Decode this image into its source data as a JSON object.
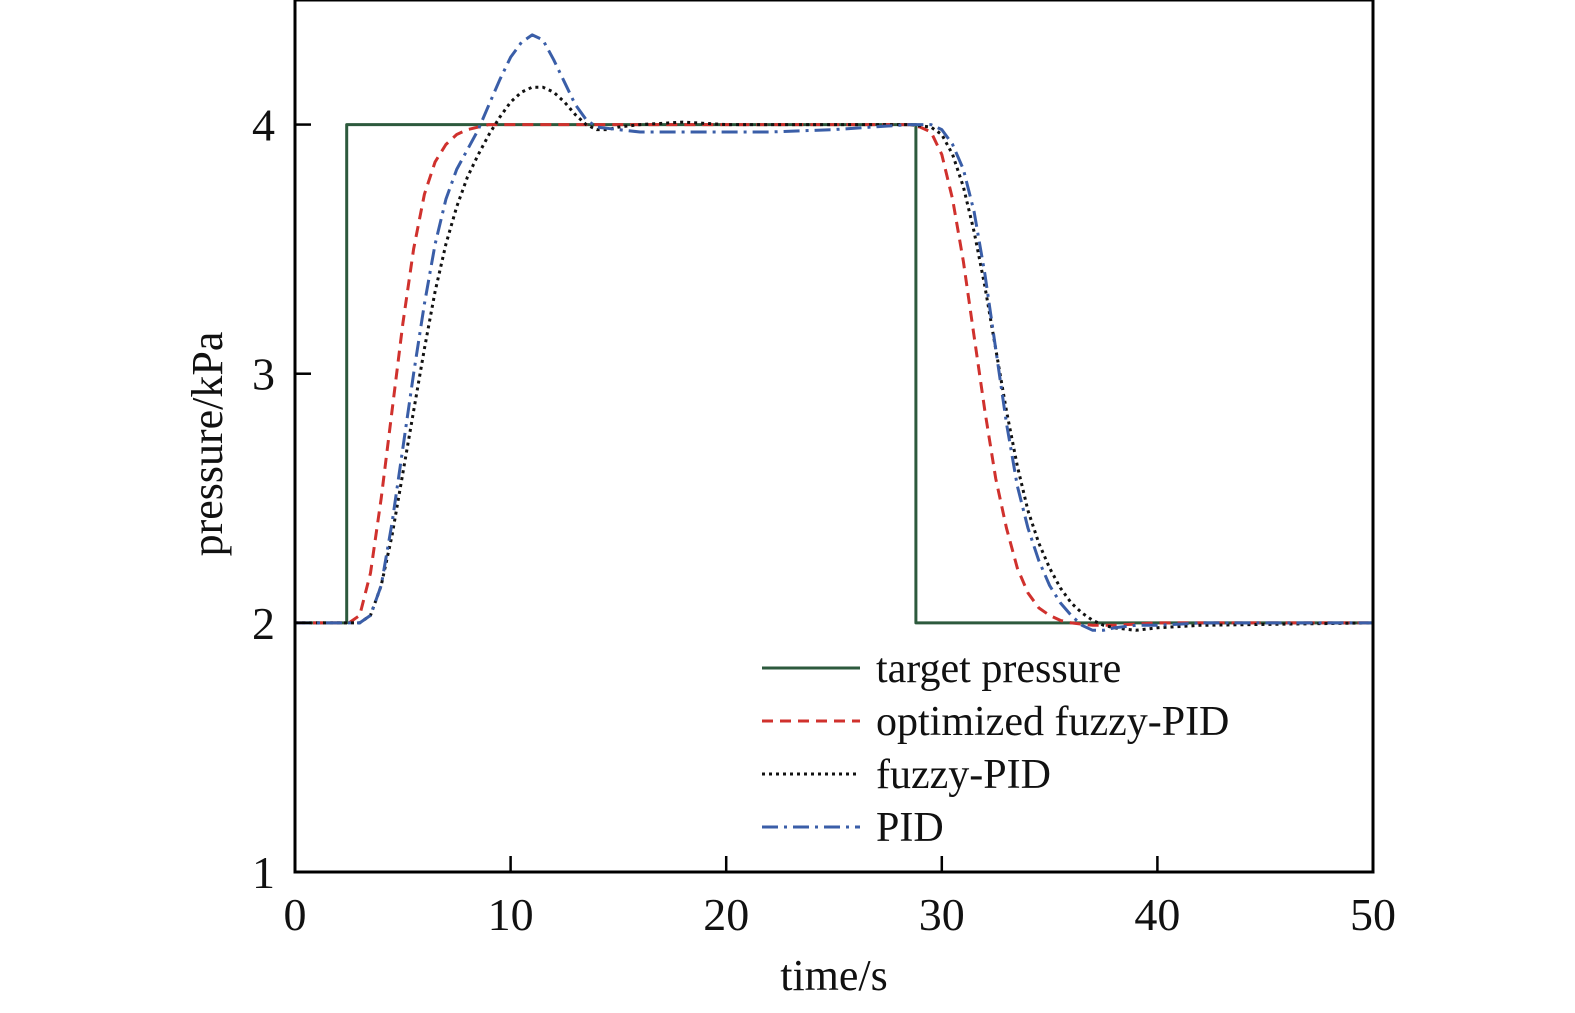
{
  "chart_data": {
    "type": "line",
    "title": "",
    "xlabel": "time/s",
    "ylabel": "pressure/kPa",
    "xlim": [
      0,
      50
    ],
    "ylim": [
      1,
      4.5
    ],
    "xticks": [
      0,
      10,
      20,
      30,
      40,
      50
    ],
    "yticks": [
      1,
      2,
      3,
      4
    ],
    "grid": false,
    "legend_position": "bottom-right",
    "series": [
      {
        "name": "target pressure",
        "color": "#2d5a3d",
        "dash": "solid",
        "x": [
          0,
          2.4,
          2.4,
          28.8,
          28.8,
          50
        ],
        "y": [
          2,
          2,
          4,
          4,
          2,
          2
        ]
      },
      {
        "name": "optimized fuzzy-PID",
        "color": "#d0312d",
        "dash": "dashed",
        "x": [
          0,
          2.5,
          3.0,
          3.5,
          4.0,
          4.5,
          5.0,
          5.5,
          6.0,
          6.5,
          7.0,
          7.5,
          8.0,
          8.5,
          9.0,
          10.0,
          12.0,
          20.0,
          28.5,
          29.0,
          29.5,
          30.0,
          30.5,
          31.0,
          31.5,
          32.0,
          32.5,
          33.0,
          33.5,
          34.0,
          34.5,
          35.0,
          35.5,
          36.0,
          37.0,
          38.0,
          40.0,
          50.0
        ],
        "y": [
          2.0,
          2.0,
          2.03,
          2.2,
          2.5,
          2.85,
          3.2,
          3.5,
          3.72,
          3.85,
          3.92,
          3.96,
          3.98,
          3.99,
          4.0,
          4.0,
          4.0,
          4.0,
          4.0,
          3.99,
          3.97,
          3.88,
          3.7,
          3.45,
          3.15,
          2.85,
          2.58,
          2.38,
          2.22,
          2.12,
          2.06,
          2.03,
          2.01,
          2.0,
          1.99,
          1.99,
          2.0,
          2.0
        ]
      },
      {
        "name": "fuzzy-PID",
        "color": "#111111",
        "dash": "dotted",
        "x": [
          0,
          3.0,
          3.5,
          4.0,
          4.5,
          5.0,
          5.5,
          6.0,
          6.5,
          7.0,
          7.5,
          8.0,
          8.5,
          9.0,
          9.5,
          10.0,
          10.5,
          11.0,
          11.5,
          12.0,
          12.5,
          13.0,
          13.5,
          14.0,
          14.5,
          15.0,
          16.0,
          18.0,
          20.0,
          25.0,
          28.5,
          29.5,
          30.0,
          30.5,
          31.0,
          31.5,
          32.0,
          32.5,
          33.0,
          33.5,
          34.0,
          34.5,
          35.0,
          35.5,
          36.0,
          36.5,
          37.0,
          37.5,
          38.0,
          39.0,
          40.0,
          42.0,
          50.0
        ],
        "y": [
          2.0,
          2.0,
          2.03,
          2.15,
          2.35,
          2.6,
          2.85,
          3.1,
          3.33,
          3.52,
          3.67,
          3.79,
          3.88,
          3.96,
          4.03,
          4.09,
          4.13,
          4.15,
          4.15,
          4.13,
          4.09,
          4.04,
          4.0,
          3.98,
          3.98,
          3.99,
          4.0,
          4.01,
          4.0,
          4.0,
          4.0,
          3.99,
          3.96,
          3.88,
          3.75,
          3.57,
          3.35,
          3.1,
          2.85,
          2.63,
          2.45,
          2.32,
          2.22,
          2.14,
          2.08,
          2.04,
          2.01,
          1.99,
          1.98,
          1.97,
          1.98,
          1.99,
          2.0
        ]
      },
      {
        "name": "PID",
        "color": "#3a5ea8",
        "dash": "dashdot",
        "x": [
          0,
          3.0,
          3.5,
          4.0,
          4.5,
          5.0,
          5.5,
          6.0,
          6.5,
          7.0,
          7.5,
          8.0,
          8.5,
          9.0,
          9.5,
          10.0,
          10.5,
          11.0,
          11.5,
          12.0,
          12.5,
          13.0,
          13.5,
          14.0,
          15.0,
          16.0,
          18.0,
          20.0,
          22.0,
          25.0,
          28.5,
          29.5,
          30.0,
          30.5,
          31.0,
          31.5,
          32.0,
          32.5,
          33.0,
          33.5,
          34.0,
          34.5,
          35.0,
          35.5,
          36.0,
          36.5,
          37.0,
          37.5,
          38.0,
          39.0,
          40.0,
          42.0,
          50.0
        ],
        "y": [
          2.0,
          2.0,
          2.03,
          2.15,
          2.4,
          2.7,
          3.0,
          3.28,
          3.52,
          3.7,
          3.82,
          3.9,
          3.98,
          4.08,
          4.18,
          4.27,
          4.33,
          4.36,
          4.34,
          4.26,
          4.17,
          4.08,
          4.02,
          3.99,
          3.98,
          3.97,
          3.97,
          3.97,
          3.97,
          3.98,
          4.0,
          4.0,
          3.98,
          3.92,
          3.82,
          3.65,
          3.4,
          3.1,
          2.8,
          2.55,
          2.38,
          2.25,
          2.15,
          2.08,
          2.03,
          1.99,
          1.97,
          1.97,
          1.98,
          1.99,
          1.99,
          2.0,
          2.0
        ]
      }
    ]
  }
}
